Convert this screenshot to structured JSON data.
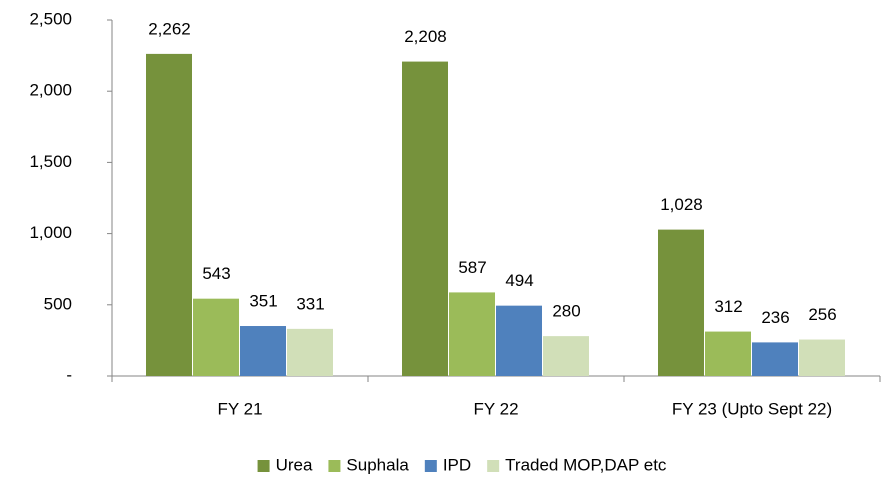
{
  "chart_data": {
    "type": "bar",
    "categories": [
      "FY 21",
      "FY 22",
      "FY 23 (Upto Sept 22)"
    ],
    "series": [
      {
        "name": "Urea",
        "color": "#76923c",
        "values": [
          2262,
          2208,
          1028
        ],
        "value_labels": [
          "2,262",
          "2,208",
          "1,028"
        ]
      },
      {
        "name": "Suphala",
        "color": "#9bbb59",
        "values": [
          543,
          587,
          312
        ]
      },
      {
        "name": "IPD",
        "color": "#4f81bd",
        "values": [
          351,
          494,
          236
        ]
      },
      {
        "name": "Traded MOP,DAP etc",
        "color": "#d1dfb8",
        "values": [
          331,
          280,
          256
        ]
      }
    ],
    "ylim": [
      0,
      2500
    ],
    "yticks": [
      {
        "value": 0,
        "label": "-"
      },
      500,
      {
        "value": 1000,
        "label": "1,000"
      },
      {
        "value": 1500,
        "label": "1,500"
      },
      {
        "value": 2000,
        "label": "2,000"
      },
      {
        "value": 2500,
        "label": "2,500"
      }
    ],
    "legend": "bottom"
  }
}
